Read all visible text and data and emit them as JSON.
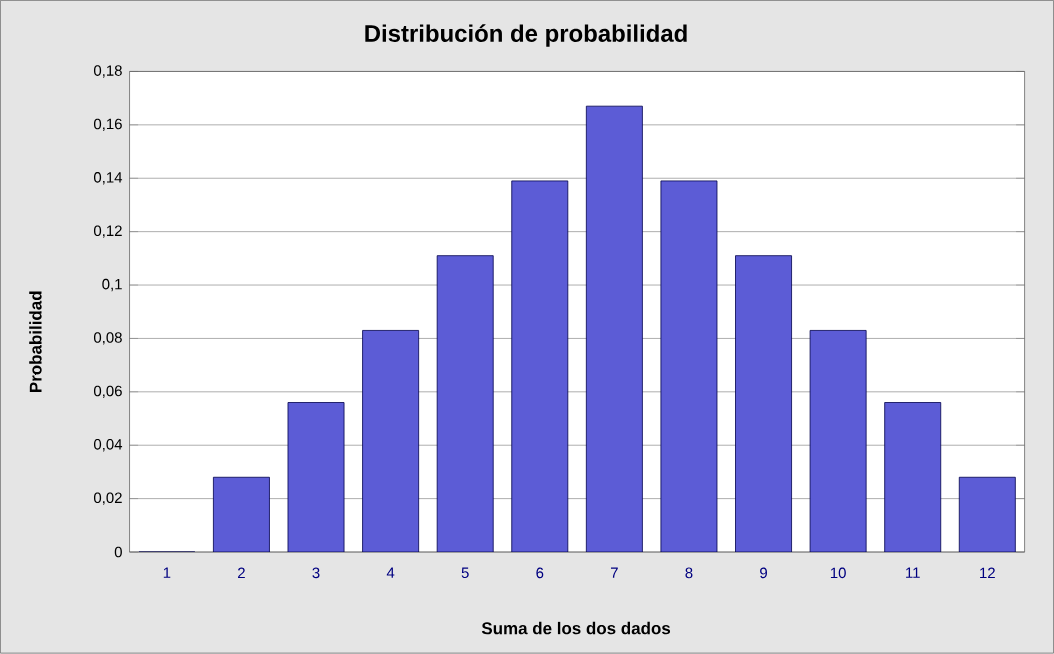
{
  "chart_data": {
    "type": "bar",
    "title": "Distribución de probabilidad",
    "xlabel": "Suma de los dos dados",
    "ylabel": "Probabilidad",
    "categories": [
      "1",
      "2",
      "3",
      "4",
      "5",
      "6",
      "7",
      "8",
      "9",
      "10",
      "11",
      "12"
    ],
    "values": [
      0,
      0.028,
      0.056,
      0.083,
      0.111,
      0.139,
      0.167,
      0.139,
      0.111,
      0.083,
      0.056,
      0.028
    ],
    "color": "#5c5cd6",
    "ylim": [
      0,
      0.18
    ],
    "yticks": [
      0,
      {
        "value": 0.02,
        "label": "0,02"
      },
      {
        "value": 0.04,
        "label": "0,04"
      },
      {
        "value": 0.06,
        "label": "0,06"
      },
      {
        "value": 0.08,
        "label": "0,08"
      },
      {
        "value": 0.1,
        "label": "0,1"
      },
      {
        "value": 0.12,
        "label": "0,12"
      },
      {
        "value": 0.14,
        "label": "0,14"
      },
      {
        "value": 0.16,
        "label": "0,16"
      },
      {
        "value": 0.18,
        "label": "0,18"
      }
    ],
    "grid": "y"
  }
}
